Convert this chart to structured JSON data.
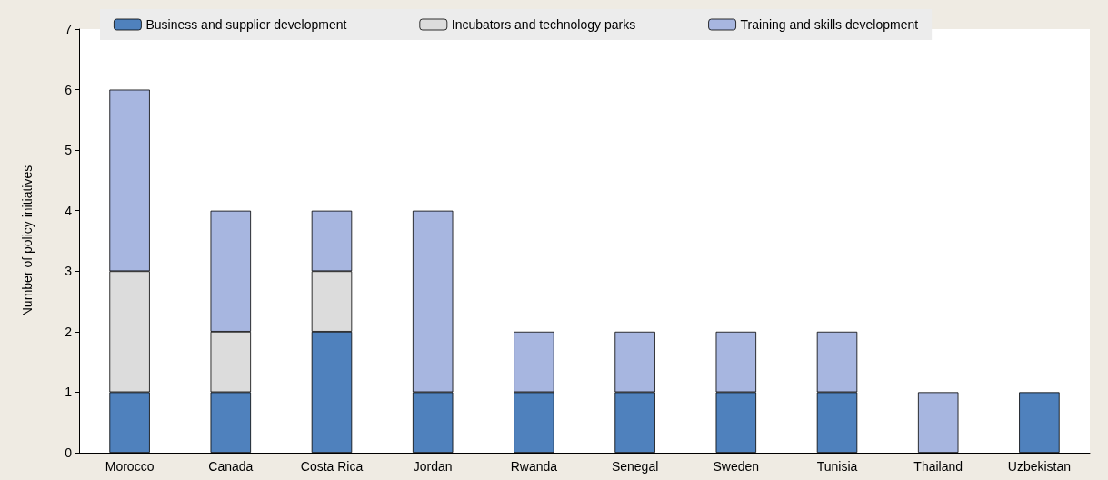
{
  "chart_data": {
    "type": "bar",
    "ylabel": "Number of policy initiatives",
    "categories": [
      "Morocco",
      "Canada",
      "Costa Rica",
      "Jordan",
      "Rwanda",
      "Senegal",
      "Sweden",
      "Tunisia",
      "Thailand",
      "Uzbekistan"
    ],
    "series": [
      {
        "name": "Business and supplier development",
        "color": "#4f81bd",
        "values": [
          1,
          1,
          2,
          1,
          1,
          1,
          1,
          1,
          0,
          1
        ]
      },
      {
        "name": "Incubators and technology parks",
        "color": "#dcdcdc",
        "values": [
          2,
          1,
          1,
          0,
          0,
          0,
          0,
          0,
          0,
          0
        ]
      },
      {
        "name": "Training and skills development",
        "color": "#a7b6e0",
        "values": [
          3,
          2,
          1,
          3,
          1,
          1,
          1,
          1,
          1,
          0
        ]
      }
    ],
    "stacked": true,
    "ylim": [
      0,
      7
    ],
    "yticks": [
      0,
      1,
      2,
      3,
      4,
      5,
      6,
      7
    ],
    "grid": false,
    "legend": "top"
  }
}
